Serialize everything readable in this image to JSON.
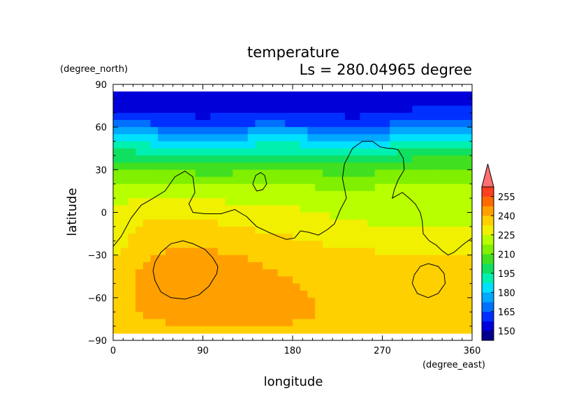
{
  "chart_data": {
    "type": "heatmap",
    "title": "temperature",
    "subtitle": "Ls = 280.04965 degree",
    "xlabel": "longitude",
    "ylabel": "latitude",
    "x_unit": "(degree_east)",
    "y_unit": "(degree_north)",
    "xlim": [
      0,
      360
    ],
    "ylim": [
      -90,
      90
    ],
    "x_ticks": [
      "0",
      "90",
      "180",
      "270",
      "360"
    ],
    "y_ticks": [
      "90",
      "60",
      "30",
      "0",
      "−30",
      "−60",
      "−90"
    ],
    "colorbar": {
      "levels": [
        142.5,
        150,
        157.5,
        165,
        172.5,
        180,
        187.5,
        195,
        202.5,
        210,
        217.5,
        225,
        232.5,
        240,
        247.5,
        255
      ],
      "tick_labels": [
        "150",
        "165",
        "180",
        "195",
        "210",
        "225",
        "240",
        "255"
      ],
      "colors": [
        "#00008c",
        "#0000d8",
        "#0030ff",
        "#0070ff",
        "#00a8ff",
        "#00e0ff",
        "#00f0b0",
        "#10e060",
        "#40e020",
        "#80f000",
        "#b8ff00",
        "#f0f000",
        "#ffd000",
        "#ffa000",
        "#ff6a00",
        "#ff4020",
        "#ff7070"
      ]
    },
    "latitudes": [
      85,
      75,
      65,
      55,
      45,
      35,
      25,
      15,
      5,
      -5,
      -15,
      -25,
      -35,
      -45,
      -55,
      -65,
      -75,
      -85
    ],
    "longitudes": [
      0,
      30,
      60,
      90,
      120,
      150,
      180,
      210,
      240,
      270,
      300,
      330,
      360
    ],
    "values": [
      [
        145,
        145,
        145,
        145,
        145,
        145,
        145,
        145,
        145,
        145,
        145,
        145,
        145
      ],
      [
        148,
        148,
        148,
        148,
        148,
        148,
        148,
        148,
        148,
        148,
        148,
        148,
        148
      ],
      [
        156,
        154,
        152,
        150,
        152,
        154,
        153,
        152,
        150,
        152,
        156,
        158,
        158
      ],
      [
        172,
        170,
        168,
        165,
        168,
        170,
        170,
        168,
        166,
        168,
        172,
        175,
        174
      ],
      [
        186,
        184,
        182,
        180,
        182,
        184,
        184,
        182,
        180,
        182,
        186,
        188,
        188
      ],
      [
        198,
        197,
        196,
        194,
        195,
        196,
        196,
        195,
        194,
        196,
        198,
        200,
        200
      ],
      [
        208,
        207,
        206,
        205,
        205,
        206,
        206,
        205,
        204,
        205,
        207,
        208,
        208
      ],
      [
        214,
        213,
        212,
        212,
        212,
        213,
        213,
        211,
        210,
        212,
        214,
        215,
        214
      ],
      [
        218,
        220,
        221,
        220,
        219,
        218,
        218,
        214,
        214,
        215,
        216,
        217,
        217
      ],
      [
        220,
        224,
        226,
        225,
        223,
        221,
        220,
        219,
        217,
        216,
        215,
        216,
        216
      ],
      [
        222,
        227,
        230,
        229,
        227,
        226,
        224,
        222,
        221,
        220,
        219,
        218,
        218
      ],
      [
        223,
        229,
        233,
        232,
        231,
        229,
        227,
        226,
        225,
        224,
        223,
        222,
        223
      ],
      [
        226,
        232,
        236,
        236,
        234,
        232,
        231,
        230,
        229,
        227,
        226,
        226,
        227
      ],
      [
        228,
        234,
        238,
        238,
        236,
        234,
        232,
        231,
        229,
        227,
        228,
        228,
        230
      ],
      [
        228,
        234,
        238,
        238,
        238,
        236,
        233,
        231,
        228,
        226,
        227,
        228,
        228
      ],
      [
        228,
        234,
        236,
        236,
        236,
        236,
        234,
        232,
        229,
        228,
        228,
        228,
        228
      ],
      [
        226,
        232,
        234,
        234,
        234,
        234,
        234,
        232,
        230,
        228,
        228,
        228,
        228
      ],
      [
        225,
        228,
        230,
        230,
        230,
        230,
        228,
        228,
        228,
        228,
        228,
        228,
        228
      ]
    ],
    "contours": [
      {
        "level": 210,
        "points": [
          [
            0,
            -24
          ],
          [
            8,
            -17
          ],
          [
            18,
            -4
          ],
          [
            28,
            5
          ],
          [
            38,
            9
          ],
          [
            52,
            15
          ],
          [
            62,
            25
          ],
          [
            72,
            29
          ],
          [
            80,
            25
          ],
          [
            82,
            14
          ],
          [
            76,
            6
          ],
          [
            80,
            0
          ],
          [
            92,
            -1
          ],
          [
            108,
            -1
          ],
          [
            122,
            2
          ],
          [
            134,
            -3
          ],
          [
            144,
            -10
          ],
          [
            156,
            -14
          ],
          [
            166,
            -17
          ],
          [
            174,
            -19
          ],
          [
            182,
            -18
          ],
          [
            188,
            -13
          ],
          [
            196,
            -14
          ],
          [
            206,
            -16
          ],
          [
            215,
            -12
          ],
          [
            222,
            -8
          ],
          [
            228,
            2
          ],
          [
            234,
            10
          ],
          [
            232,
            17
          ],
          [
            230,
            24
          ],
          [
            232,
            34
          ],
          [
            240,
            45
          ],
          [
            250,
            50
          ],
          [
            260,
            50
          ],
          [
            268,
            46
          ],
          [
            276,
            45
          ],
          [
            280,
            45
          ],
          [
            286,
            44
          ],
          [
            291,
            38
          ],
          [
            292,
            30
          ],
          [
            286,
            23
          ],
          [
            282,
            16
          ],
          [
            280,
            10
          ],
          [
            290,
            14
          ],
          [
            297,
            10
          ],
          [
            303,
            6
          ],
          [
            308,
            0
          ],
          [
            310,
            -6
          ],
          [
            311,
            -15
          ],
          [
            317,
            -20
          ],
          [
            324,
            -23
          ],
          [
            330,
            -27
          ],
          [
            336,
            -30
          ],
          [
            342,
            -28
          ],
          [
            352,
            -22
          ],
          [
            360,
            -18
          ]
        ]
      },
      {
        "level": 210,
        "points": [
          [
            140,
            20
          ],
          [
            143,
            26
          ],
          [
            148,
            28
          ],
          [
            152,
            26
          ],
          [
            154,
            20
          ],
          [
            150,
            16
          ],
          [
            144,
            15
          ],
          [
            140,
            20
          ]
        ]
      },
      {
        "level": 240,
        "points": [
          [
            40,
            -41
          ],
          [
            42,
            -48
          ],
          [
            48,
            -56
          ],
          [
            58,
            -60
          ],
          [
            72,
            -61
          ],
          [
            86,
            -58
          ],
          [
            96,
            -52
          ],
          [
            104,
            -43
          ],
          [
            105,
            -38
          ],
          [
            100,
            -32
          ],
          [
            92,
            -26
          ],
          [
            80,
            -22
          ],
          [
            70,
            -20
          ],
          [
            58,
            -22
          ],
          [
            48,
            -28
          ],
          [
            42,
            -35
          ],
          [
            40,
            -41
          ]
        ]
      },
      {
        "level": 225,
        "points": [
          [
            300,
            -50
          ],
          [
            305,
            -57
          ],
          [
            316,
            -60
          ],
          [
            326,
            -57
          ],
          [
            333,
            -50
          ],
          [
            332,
            -43
          ],
          [
            326,
            -38
          ],
          [
            316,
            -36
          ],
          [
            308,
            -38
          ],
          [
            302,
            -44
          ],
          [
            300,
            -50
          ]
        ]
      }
    ],
    "colorbar_position": "right"
  }
}
